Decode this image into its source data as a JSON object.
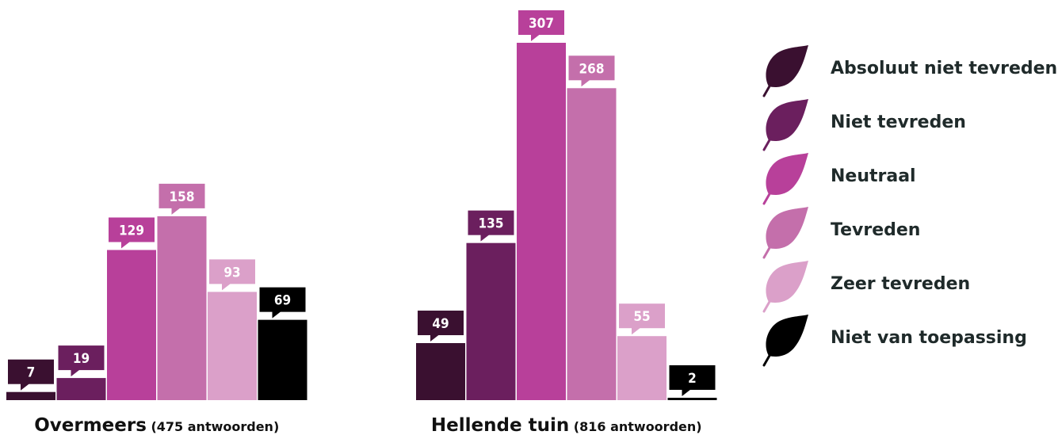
{
  "chart_data": {
    "type": "bar",
    "categories": [
      {
        "name": "Overmeers",
        "note": "(475 antwoorden)"
      },
      {
        "name": "Hellende tuin",
        "note": "(816 antwoorden)"
      }
    ],
    "series": [
      {
        "name": "Absoluut niet tevreden",
        "color": "#3a1030",
        "values": [
          7,
          49
        ]
      },
      {
        "name": "Niet tevreden",
        "color": "#6b1f5e",
        "values": [
          19,
          135
        ]
      },
      {
        "name": "Neutraal",
        "color": "#b8409a",
        "values": [
          129,
          307
        ]
      },
      {
        "name": "Tevreden",
        "color": "#c46fab",
        "values": [
          158,
          268
        ]
      },
      {
        "name": "Zeer tevreden",
        "color": "#dba0c9",
        "values": [
          93,
          55
        ]
      },
      {
        "name": "Niet van toepassing",
        "color": "#000000",
        "values": [
          69,
          2
        ]
      }
    ],
    "legend_position": "right",
    "grid": false,
    "legend_icon": "leaf-icon"
  }
}
